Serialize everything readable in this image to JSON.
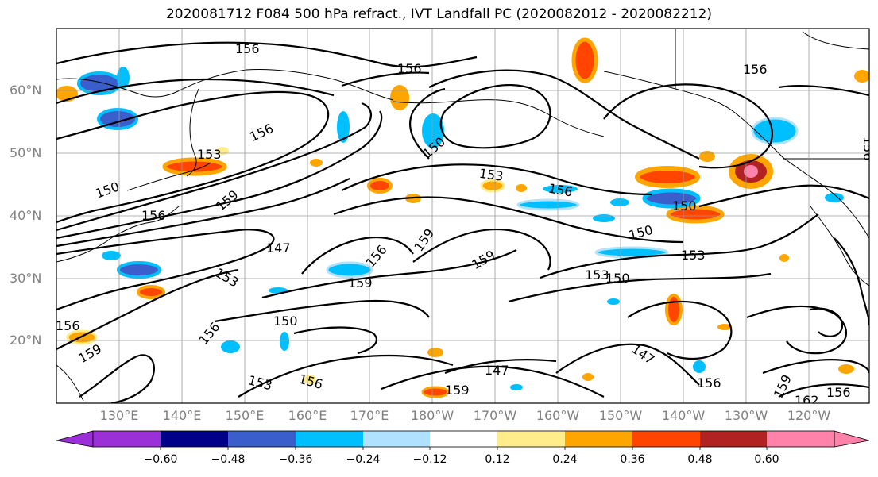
{
  "title": "2020081712 F084 500 hPa refract., IVT Landfall PC (2020082012 - 2020082212)",
  "lat_labels": [
    "60°N",
    "50°N",
    "40°N",
    "30°N",
    "20°N"
  ],
  "lon_labels": [
    "130°E",
    "140°E",
    "150°E",
    "160°E",
    "170°E",
    "180°W",
    "170°W",
    "160°W",
    "150°W",
    "140°W",
    "130°W",
    "120°W"
  ],
  "colorbar": {
    "ticks": [
      "−0.60",
      "−0.48",
      "−0.36",
      "−0.24",
      "−0.12",
      "0.12",
      "0.24",
      "0.36",
      "0.48",
      "0.60"
    ],
    "colors": [
      "#9b30d9",
      "#00008b",
      "#3a5fcd",
      "#00bfff",
      "#b0e2ff",
      "#ffffff",
      "#ffec8b",
      "#ffa500",
      "#ff4500",
      "#b22222",
      "#ff82ab"
    ]
  },
  "contour_labels": [
    "156",
    "156",
    "156",
    "156",
    "153",
    "150",
    "156",
    "159",
    "153",
    "156",
    "150",
    "150",
    "147",
    "156",
    "159",
    "159",
    "153",
    "159",
    "150",
    "153",
    "150",
    "153",
    "150",
    "156",
    "159",
    "153",
    "156",
    "147",
    "147",
    "156",
    "159",
    "159",
    "162",
    "156",
    "156",
    "156"
  ]
}
